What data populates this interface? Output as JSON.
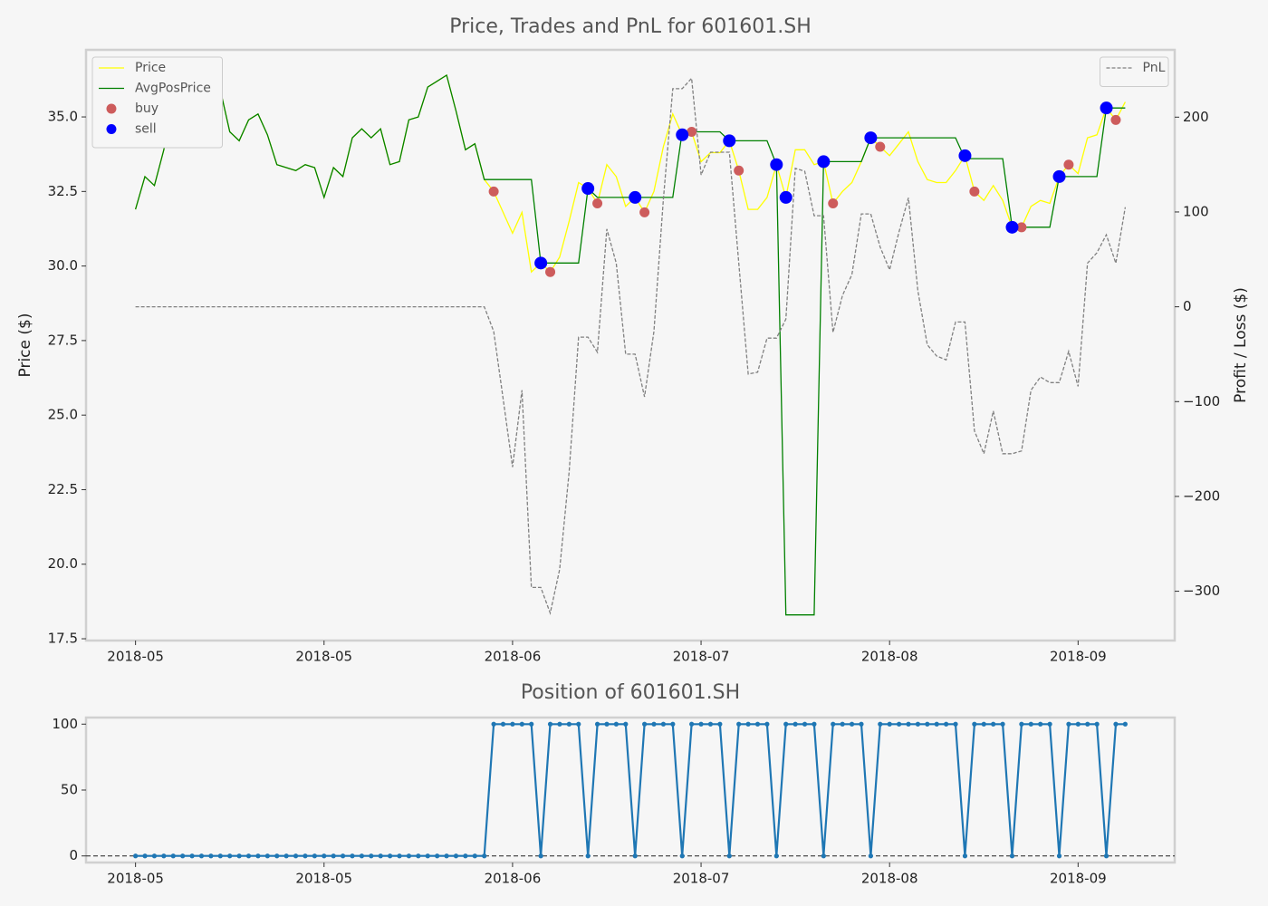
{
  "chart_data": [
    {
      "type": "line",
      "title": "Price, Trades and PnL for 601601.SH",
      "ylabel": "Price ($)",
      "y2label": "Profit / Loss ($)",
      "x": [
        0,
        1,
        2,
        3,
        4,
        5,
        6,
        7,
        8,
        9,
        10,
        11,
        12,
        13,
        14,
        15,
        16,
        17,
        18,
        19,
        20,
        21,
        22,
        23,
        24,
        25,
        26,
        27,
        28,
        29,
        30,
        31,
        32,
        33,
        34,
        35,
        36,
        37,
        38,
        39,
        40,
        41,
        42,
        43,
        44,
        45,
        46,
        47,
        48,
        49,
        50,
        51,
        52,
        53,
        54,
        55,
        56,
        57,
        58,
        59,
        60,
        61,
        62,
        63,
        64,
        65,
        66,
        67,
        68,
        69,
        70,
        71,
        72,
        73,
        74,
        75,
        76,
        77,
        78,
        79,
        80,
        81,
        82,
        83,
        84,
        85,
        86,
        87,
        88,
        89,
        90,
        91,
        92,
        93,
        94,
        95,
        96,
        97,
        98,
        99,
        100,
        101,
        102,
        103,
        104,
        105
      ],
      "xlim": [
        -5.25,
        110.25
      ],
      "xticks": [
        {
          "value": 0,
          "label": "2018-05"
        },
        {
          "value": 20,
          "label": "2018-05"
        },
        {
          "value": 40,
          "label": "2018-06"
        },
        {
          "value": 60,
          "label": "2018-07"
        },
        {
          "value": 80,
          "label": "2018-08"
        },
        {
          "value": 100,
          "label": "2018-09"
        }
      ],
      "ylim": [
        17.44,
        37.25
      ],
      "yticks": [
        17.5,
        {
          "value": 20,
          "label": "20.0"
        },
        22.5,
        {
          "value": 25,
          "label": "25.0"
        },
        27.5,
        {
          "value": 30,
          "label": "30.0"
        },
        32.5,
        {
          "value": 35,
          "label": "35.0"
        }
      ],
      "y2lim": [
        -352,
        271
      ],
      "y2ticks": [
        {
          "value": -300,
          "label": "−300"
        },
        {
          "value": -200,
          "label": "−200"
        },
        {
          "value": -100,
          "label": "−100"
        },
        0,
        100,
        200
      ],
      "legend": "upper left",
      "y2_legend": "upper right",
      "series": [
        {
          "name": "Price",
          "kind": "line",
          "color": "#ffff00",
          "values": [
            31.9,
            33.0,
            32.7,
            33.9,
            35.8,
            36.0,
            35.9,
            35.3,
            36.2,
            35.9,
            34.5,
            34.2,
            34.9,
            35.1,
            34.4,
            33.4,
            33.3,
            33.2,
            33.4,
            33.3,
            32.3,
            33.3,
            33.0,
            34.3,
            34.6,
            34.3,
            34.6,
            33.4,
            33.5,
            34.9,
            35.0,
            36.0,
            36.2,
            36.4,
            35.2,
            33.9,
            34.1,
            32.9,
            32.5,
            31.8,
            31.1,
            31.8,
            29.8,
            30.1,
            29.8,
            30.3,
            31.5,
            32.8,
            32.6,
            32.1,
            33.4,
            33.0,
            32.0,
            32.3,
            31.8,
            32.5,
            34.0,
            35.1,
            34.4,
            34.5,
            33.5,
            33.8,
            33.8,
            34.2,
            33.2,
            31.9,
            31.9,
            32.3,
            33.4,
            32.3,
            33.9,
            33.9,
            33.4,
            33.5,
            32.1,
            32.5,
            32.8,
            33.5,
            34.3,
            34.0,
            33.7,
            34.1,
            34.5,
            33.5,
            32.9,
            32.8,
            32.8,
            33.2,
            33.7,
            32.5,
            32.2,
            32.7,
            32.2,
            31.3,
            31.3,
            32.0,
            32.2,
            32.1,
            33.0,
            33.4,
            33.1,
            34.3,
            34.4,
            35.3,
            34.9,
            35.5
          ]
        },
        {
          "name": "AvgPosPrice",
          "kind": "line",
          "color": "#008000",
          "values": [
            31.9,
            33.0,
            32.7,
            33.9,
            35.8,
            36.0,
            35.9,
            35.3,
            36.2,
            35.9,
            34.5,
            34.2,
            34.9,
            35.1,
            34.4,
            33.4,
            33.3,
            33.2,
            33.4,
            33.3,
            32.3,
            33.3,
            33.0,
            34.3,
            34.6,
            34.3,
            34.6,
            33.4,
            33.5,
            34.9,
            35.0,
            36.0,
            36.2,
            36.4,
            35.2,
            33.9,
            34.1,
            32.9,
            32.9,
            32.9,
            32.9,
            32.9,
            32.9,
            30.1,
            30.1,
            30.1,
            30.1,
            30.1,
            32.6,
            32.3,
            32.3,
            32.3,
            32.3,
            32.3,
            32.3,
            32.3,
            32.3,
            32.3,
            34.5,
            34.5,
            34.5,
            34.5,
            34.5,
            34.2,
            34.2,
            34.2,
            34.2,
            34.2,
            33.4,
            18.3,
            18.3,
            18.3,
            18.3,
            33.5,
            33.5,
            33.5,
            33.5,
            33.5,
            34.3,
            34.3,
            34.3,
            34.3,
            34.3,
            34.3,
            34.3,
            34.3,
            34.3,
            34.3,
            33.6,
            33.6,
            33.6,
            33.6,
            33.6,
            31.3,
            31.3,
            31.3,
            31.3,
            31.3,
            33.0,
            33.0,
            33.0,
            33.0,
            33.0,
            35.3,
            35.3,
            35.3
          ]
        },
        {
          "name": "buy",
          "kind": "scatter",
          "color": "#cd5c5c",
          "x": [
            38,
            44,
            49,
            54,
            59,
            64,
            74,
            79,
            89,
            94,
            99,
            104
          ],
          "values": [
            32.5,
            29.8,
            32.1,
            31.8,
            34.5,
            33.2,
            32.1,
            34.0,
            32.5,
            31.3,
            33.4,
            34.9
          ]
        },
        {
          "name": "sell",
          "kind": "scatter",
          "color": "#0000ff",
          "x": [
            43,
            48,
            53,
            58,
            63,
            68,
            69,
            73,
            78,
            88,
            93,
            98,
            103
          ],
          "values": [
            30.1,
            32.6,
            32.3,
            34.4,
            34.2,
            33.4,
            32.3,
            33.5,
            34.3,
            33.7,
            31.3,
            33.0,
            35.3
          ]
        },
        {
          "name": "PnL",
          "kind": "line",
          "linestyle": "dashed",
          "axis": "y2",
          "color": "#808080",
          "values": [
            0,
            0,
            0,
            0,
            0,
            0,
            0,
            0,
            0,
            0,
            0,
            0,
            0,
            0,
            0,
            0,
            0,
            0,
            0,
            0,
            0,
            0,
            0,
            0,
            0,
            0,
            0,
            0,
            0,
            0,
            0,
            0,
            0,
            0,
            0,
            0,
            0,
            0,
            -26,
            -97,
            -169,
            -88,
            -296,
            -296,
            -323,
            -277,
            -174,
            -32,
            -32,
            -48,
            82,
            46,
            -50,
            -50,
            -95,
            -26,
            113,
            230,
            230,
            241,
            139,
            163,
            163,
            163,
            46,
            -71,
            -69,
            -33,
            -33,
            -13,
            146,
            143,
            96,
            96,
            -27,
            12,
            34,
            98,
            98,
            63,
            39,
            79,
            115,
            17,
            -40,
            -52,
            -56,
            -16,
            -16,
            -131,
            -155,
            -110,
            -155,
            -155,
            -152,
            -88,
            -74,
            -80,
            -80,
            -47,
            -84,
            46,
            57,
            76,
            46,
            105
          ]
        }
      ]
    },
    {
      "type": "line",
      "title": "Position of 601601.SH",
      "x": [
        0,
        1,
        2,
        3,
        4,
        5,
        6,
        7,
        8,
        9,
        10,
        11,
        12,
        13,
        14,
        15,
        16,
        17,
        18,
        19,
        20,
        21,
        22,
        23,
        24,
        25,
        26,
        27,
        28,
        29,
        30,
        31,
        32,
        33,
        34,
        35,
        36,
        37,
        38,
        39,
        40,
        41,
        42,
        43,
        44,
        45,
        46,
        47,
        48,
        49,
        50,
        51,
        52,
        53,
        54,
        55,
        56,
        57,
        58,
        59,
        60,
        61,
        62,
        63,
        64,
        65,
        66,
        67,
        68,
        69,
        70,
        71,
        72,
        73,
        74,
        75,
        76,
        77,
        78,
        79,
        80,
        81,
        82,
        83,
        84,
        85,
        86,
        87,
        88,
        89,
        90,
        91,
        92,
        93,
        94,
        95,
        96,
        97,
        98,
        99,
        100,
        101,
        102,
        103,
        104,
        105
      ],
      "xlim": [
        -5.25,
        110.25
      ],
      "xticks": [
        {
          "value": 0,
          "label": "2018-05"
        },
        {
          "value": 20,
          "label": "2018-05"
        },
        {
          "value": 40,
          "label": "2018-06"
        },
        {
          "value": 60,
          "label": "2018-07"
        },
        {
          "value": 80,
          "label": "2018-08"
        },
        {
          "value": 100,
          "label": "2018-09"
        }
      ],
      "ylim": [
        -5,
        105
      ],
      "yticks": [
        0,
        50,
        100
      ],
      "hline": 0,
      "series": [
        {
          "kind": "line-marker",
          "color": "#1f77b4",
          "values": [
            0,
            0,
            0,
            0,
            0,
            0,
            0,
            0,
            0,
            0,
            0,
            0,
            0,
            0,
            0,
            0,
            0,
            0,
            0,
            0,
            0,
            0,
            0,
            0,
            0,
            0,
            0,
            0,
            0,
            0,
            0,
            0,
            0,
            0,
            0,
            0,
            0,
            0,
            100,
            100,
            100,
            100,
            100,
            0,
            100,
            100,
            100,
            100,
            0,
            100,
            100,
            100,
            100,
            0,
            100,
            100,
            100,
            100,
            0,
            100,
            100,
            100,
            100,
            0,
            100,
            100,
            100,
            100,
            0,
            100,
            100,
            100,
            100,
            0,
            100,
            100,
            100,
            100,
            0,
            100,
            100,
            100,
            100,
            100,
            100,
            100,
            100,
            100,
            0,
            100,
            100,
            100,
            100,
            0,
            100,
            100,
            100,
            100,
            0,
            100,
            100,
            100,
            100,
            0,
            100,
            100
          ]
        }
      ]
    }
  ]
}
